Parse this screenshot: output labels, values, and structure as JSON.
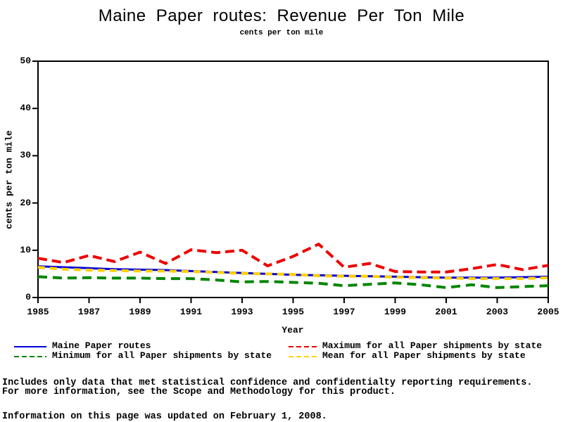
{
  "title": "Maine Paper routes: Revenue Per Ton Mile",
  "subtitle": "cents per ton mile",
  "footnotes": {
    "line1": "Includes only data that met statistical confidence and confidentialty reporting requirements.",
    "line2": "For more information, see the Scope and Methodology for this product.",
    "updated": "Information on this page was updated on February 1, 2008."
  },
  "chart_data": {
    "type": "line",
    "title": "Maine Paper routes: Revenue Per Ton Mile",
    "subtitle": "cents per ton mile",
    "xlabel": "Year",
    "ylabel": "cents per ton mile",
    "xlim": [
      1985,
      2005
    ],
    "ylim": [
      0,
      50
    ],
    "x_ticks": [
      1985,
      1987,
      1989,
      1991,
      1993,
      1995,
      1997,
      1999,
      2001,
      2003,
      2005
    ],
    "y_ticks": [
      0,
      10,
      20,
      30,
      40,
      50
    ],
    "grid": false,
    "legend_position": "bottom",
    "x": [
      1985,
      1986,
      1987,
      1988,
      1989,
      1990,
      1991,
      1992,
      1993,
      1994,
      1995,
      1996,
      1997,
      1998,
      1999,
      2000,
      2001,
      2002,
      2003,
      2004,
      2005
    ],
    "series": [
      {
        "name": "Maine Paper routes",
        "color": "#0000e0",
        "style": "solid",
        "values": [
          6.6,
          6.4,
          6.2,
          6.0,
          5.9,
          5.8,
          5.6,
          5.4,
          5.2,
          5.0,
          4.8,
          4.7,
          4.6,
          4.5,
          4.4,
          4.3,
          4.2,
          4.2,
          4.2,
          4.3,
          4.4
        ]
      },
      {
        "name": "Maximum for all Paper shipments by state",
        "color": "#ee0000",
        "style": "dashed",
        "values": [
          8.3,
          7.4,
          8.9,
          7.6,
          9.6,
          7.2,
          10.1,
          9.5,
          10.0,
          6.7,
          8.7,
          11.3,
          6.4,
          7.2,
          5.5,
          5.4,
          5.4,
          6.1,
          7.0,
          5.9,
          6.8
        ]
      },
      {
        "name": "Minimum for all Paper shipments by state",
        "color": "#008500",
        "style": "dashed",
        "values": [
          4.4,
          4.1,
          4.2,
          4.1,
          4.1,
          4.0,
          4.0,
          3.7,
          3.3,
          3.4,
          3.2,
          3.0,
          2.5,
          2.8,
          3.1,
          2.7,
          2.1,
          2.7,
          2.1,
          2.3,
          2.5
        ]
      },
      {
        "name": "Mean for all Paper shipments by state",
        "color": "#ffd000",
        "style": "dashed",
        "values": [
          6.4,
          6.0,
          5.8,
          5.7,
          5.6,
          5.6,
          5.5,
          5.3,
          5.1,
          5.0,
          4.9,
          4.6,
          4.5,
          4.5,
          4.3,
          4.2,
          4.1,
          4.0,
          4.0,
          4.0,
          4.2
        ]
      }
    ]
  },
  "legend": {
    "columns": [
      [
        {
          "label": "Maine Paper routes",
          "series": 0
        },
        {
          "label": "Minimum for all Paper shipments by state",
          "series": 2
        }
      ],
      [
        {
          "label": "Maximum for all Paper shipments by state",
          "series": 1
        },
        {
          "label": "Mean for all Paper shipments by state",
          "series": 3
        }
      ]
    ]
  }
}
